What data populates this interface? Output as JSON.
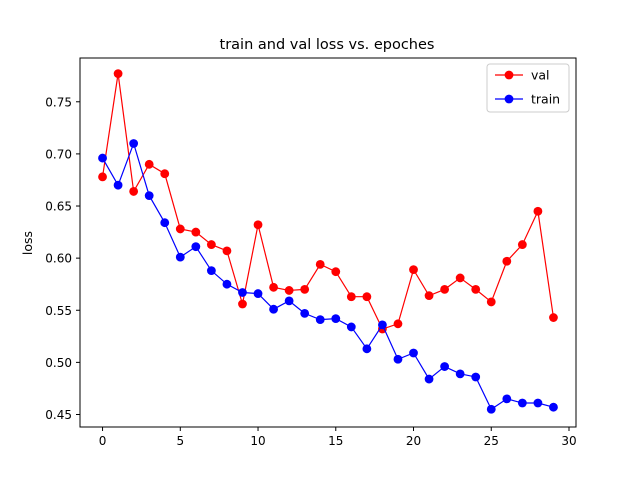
{
  "chart_data": {
    "type": "line",
    "title": "train and val loss vs. epoches",
    "xlabel": "",
    "ylabel": "loss",
    "xlim": [
      -1.45,
      30.45
    ],
    "ylim": [
      0.438,
      0.792
    ],
    "xticks": [
      0,
      5,
      10,
      15,
      20,
      25,
      30
    ],
    "yticks": [
      0.45,
      0.5,
      0.55,
      0.6,
      0.65,
      0.7,
      0.75
    ],
    "ytick_labels": [
      "0.45",
      "0.50",
      "0.55",
      "0.60",
      "0.65",
      "0.70",
      "0.75"
    ],
    "legend_position": "top-right",
    "x": [
      0,
      1,
      2,
      3,
      4,
      5,
      6,
      7,
      8,
      9,
      10,
      11,
      12,
      13,
      14,
      15,
      16,
      17,
      18,
      19,
      20,
      21,
      22,
      23,
      24,
      25,
      26,
      27,
      28,
      29
    ],
    "series": [
      {
        "name": "val",
        "color": "#ff0000",
        "values": [
          0.678,
          0.777,
          0.664,
          0.69,
          0.681,
          0.628,
          0.625,
          0.613,
          0.607,
          0.556,
          0.632,
          0.572,
          0.569,
          0.57,
          0.594,
          0.587,
          0.563,
          0.563,
          0.532,
          0.537,
          0.589,
          0.564,
          0.57,
          0.581,
          0.57,
          0.558,
          0.597,
          0.613,
          0.645,
          0.543
        ]
      },
      {
        "name": "train",
        "color": "#0000ff",
        "values": [
          0.696,
          0.67,
          0.71,
          0.66,
          0.634,
          0.601,
          0.611,
          0.588,
          0.575,
          0.567,
          0.566,
          0.551,
          0.559,
          0.547,
          0.541,
          0.542,
          0.534,
          0.513,
          0.536,
          0.503,
          0.509,
          0.484,
          0.496,
          0.489,
          0.486,
          0.455,
          0.465,
          0.461,
          0.461,
          0.457
        ]
      }
    ]
  }
}
